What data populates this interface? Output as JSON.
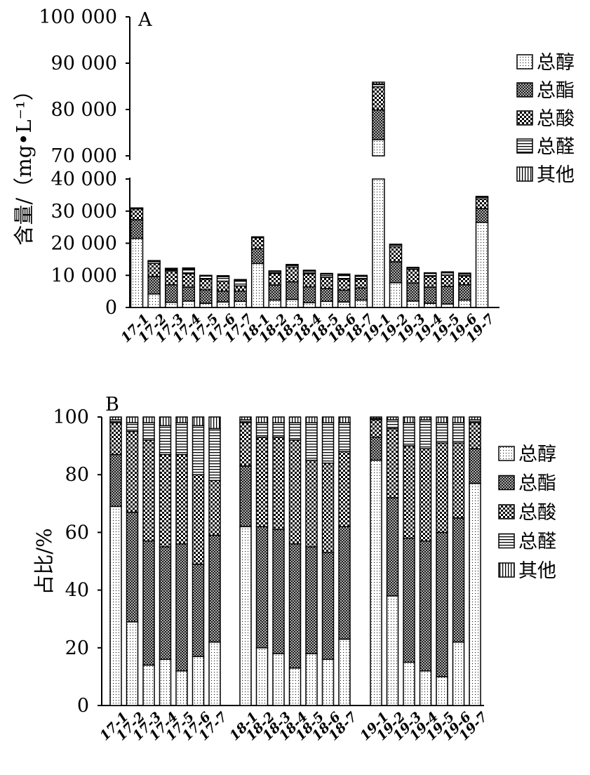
{
  "chart_data": [
    {
      "type": "bar",
      "stacked": true,
      "panel_label": "A",
      "ylabel": "含量/（mg•L⁻¹）",
      "axis_break": [
        40000,
        70000
      ],
      "ylim": [
        0,
        100000
      ],
      "yticks": [
        0,
        10000,
        20000,
        30000,
        40000,
        70000,
        80000,
        90000,
        100000
      ],
      "ytick_labels": [
        "0",
        "10 000",
        "20 000",
        "30 000",
        "40 000",
        "70 000",
        "80 000",
        "90 000",
        "100 000"
      ],
      "categories": [
        "17-1",
        "17-2",
        "17-3",
        "17-4",
        "17-5",
        "17-6",
        "17-7",
        "18-1",
        "18-2",
        "18-3",
        "18-4",
        "18-5",
        "18-6",
        "18-7",
        "19-1",
        "19-2",
        "19-3",
        "19-4",
        "19-5",
        "19-6",
        "19-7"
      ],
      "legend_position": "right",
      "series": [
        {
          "name": "总醇",
          "pattern": "dots",
          "values": [
            21500,
            4200,
            1600,
            2000,
            1300,
            1700,
            1900,
            13700,
            2300,
            2500,
            1500,
            1900,
            1700,
            2300,
            73500,
            7700,
            2000,
            1300,
            1100,
            2300,
            26500
          ]
        },
        {
          "name": "总酯",
          "pattern": "crosshatch",
          "values": [
            5800,
            5500,
            5500,
            4300,
            4200,
            3400,
            3200,
            4600,
            4700,
            5500,
            4900,
            4000,
            3700,
            3800,
            6400,
            6500,
            5600,
            5000,
            5500,
            4800,
            4300
          ]
        },
        {
          "name": "总酸",
          "pattern": "checker",
          "values": [
            3400,
            4000,
            4300,
            4200,
            3300,
            3100,
            1600,
            3400,
            3600,
            4600,
            4100,
            3500,
            3400,
            2700,
            5000,
            4700,
            4300,
            3400,
            3500,
            2700,
            3000
          ]
        },
        {
          "name": "总醛",
          "pattern": "horizontal",
          "values": [
            100,
            600,
            500,
            1500,
            1000,
            1400,
            1700,
            100,
            600,
            500,
            800,
            1000,
            1400,
            900,
            600,
            500,
            400,
            900,
            700,
            600,
            500
          ]
        },
        {
          "name": "其他",
          "pattern": "vertical",
          "values": [
            200,
            300,
            300,
            300,
            200,
            300,
            300,
            200,
            200,
            300,
            300,
            200,
            200,
            300,
            400,
            300,
            200,
            200,
            300,
            300,
            300
          ]
        }
      ]
    },
    {
      "type": "bar",
      "stacked": true,
      "panel_label": "B",
      "ylabel": "占比/%",
      "ylim": [
        0,
        100
      ],
      "yticks": [
        0,
        20,
        40,
        60,
        80,
        100
      ],
      "ytick_labels": [
        "0",
        "20",
        "40",
        "60",
        "80",
        "100"
      ],
      "categories": [
        "17-1",
        "17-2",
        "17-3",
        "17-4",
        "17-5",
        "17-6",
        "17-7",
        "18-1",
        "18-2",
        "18-3",
        "18-4",
        "18-5",
        "18-6",
        "18-7",
        "19-1",
        "19-2",
        "19-3",
        "19-4",
        "19-5",
        "19-6",
        "19-7"
      ],
      "legend_position": "right",
      "series": [
        {
          "name": "总醇",
          "pattern": "dots",
          "values": [
            69,
            29,
            14,
            16,
            12,
            17,
            22,
            62,
            20,
            18,
            13,
            18,
            16,
            23,
            85,
            38,
            15,
            12,
            10,
            22,
            77
          ]
        },
        {
          "name": "总酯",
          "pattern": "crosshatch",
          "values": [
            18,
            38,
            43,
            39,
            44,
            32,
            37,
            21,
            42,
            43,
            43,
            37,
            37,
            39,
            8,
            34,
            43,
            45,
            50,
            43,
            12
          ]
        },
        {
          "name": "总酸",
          "pattern": "checker",
          "values": [
            11,
            28,
            35,
            32,
            31,
            31,
            19,
            15,
            31,
            32,
            36,
            30,
            31,
            26,
            6,
            24,
            32,
            32,
            31,
            26,
            9
          ]
        },
        {
          "name": "总醛",
          "pattern": "horizontal",
          "values": [
            1,
            3,
            6,
            10,
            11,
            17,
            18,
            1,
            5,
            5,
            6,
            13,
            14,
            10,
            0.5,
            3,
            8,
            10,
            7,
            7,
            1
          ]
        },
        {
          "name": "其他",
          "pattern": "vertical",
          "values": [
            1,
            2,
            2,
            3,
            2,
            3,
            4,
            1,
            2,
            2,
            2,
            2,
            2,
            2,
            0.5,
            1,
            2,
            1,
            2,
            2,
            1
          ]
        }
      ]
    }
  ]
}
